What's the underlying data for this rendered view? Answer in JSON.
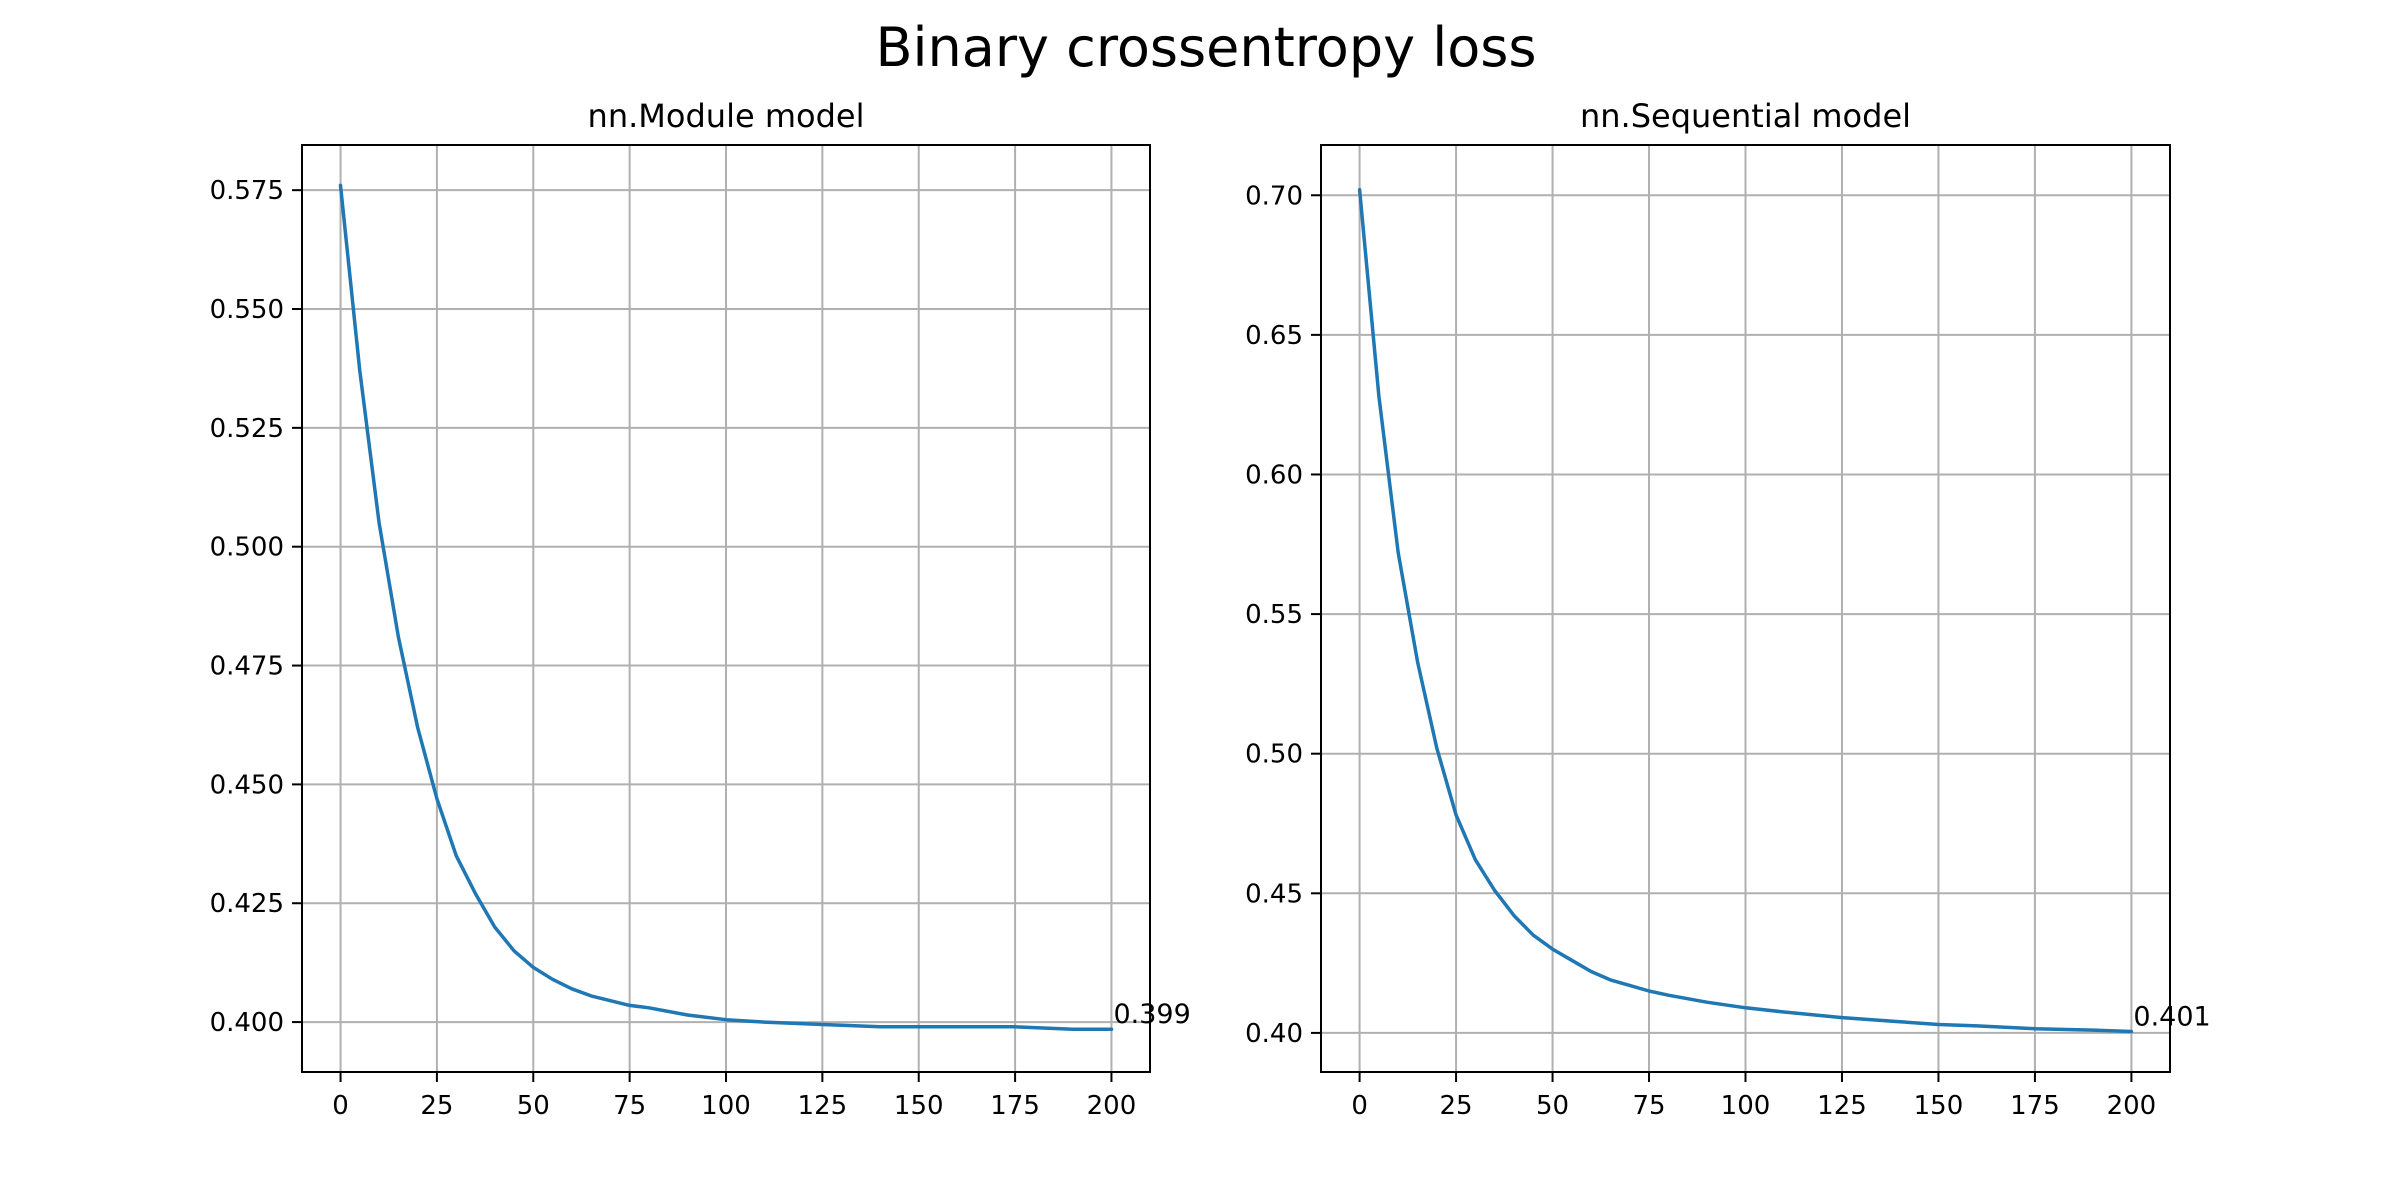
{
  "figure": {
    "title": "Binary crossentropy loss"
  },
  "colors": {
    "series": "#1f77b4",
    "grid": "#b0b0b0",
    "axes": "#000000"
  },
  "chart_data": [
    {
      "type": "line",
      "title": "nn.Module model",
      "xlabel": "",
      "ylabel": "",
      "xlim": [
        -10,
        210
      ],
      "ylim": [
        0.3895,
        0.5845
      ],
      "xticks": [
        0,
        25,
        50,
        75,
        100,
        125,
        150,
        175,
        200
      ],
      "xtick_labels": [
        "0",
        "25",
        "50",
        "75",
        "100",
        "125",
        "150",
        "175",
        "200"
      ],
      "yticks": [
        0.4,
        0.425,
        0.45,
        0.475,
        0.5,
        0.525,
        0.55,
        0.575
      ],
      "ytick_labels": [
        "0.400",
        "0.425",
        "0.450",
        "0.475",
        "0.500",
        "0.525",
        "0.550",
        "0.575"
      ],
      "grid": true,
      "end_annotation": "0.399",
      "series": [
        {
          "x": [
            0,
            5,
            10,
            15,
            20,
            25,
            30,
            35,
            40,
            45,
            50,
            55,
            60,
            65,
            70,
            75,
            80,
            90,
            100,
            110,
            125,
            140,
            150,
            160,
            175,
            190,
            200
          ],
          "y": [
            0.576,
            0.537,
            0.505,
            0.481,
            0.462,
            0.447,
            0.435,
            0.427,
            0.42,
            0.415,
            0.4115,
            0.409,
            0.407,
            0.4055,
            0.4045,
            0.4035,
            0.403,
            0.4015,
            0.4005,
            0.4,
            0.3995,
            0.399,
            0.399,
            0.399,
            0.399,
            0.3985,
            0.3985
          ]
        }
      ]
    },
    {
      "type": "line",
      "title": "nn.Sequential model",
      "xlabel": "",
      "ylabel": "",
      "xlim": [
        -10,
        210
      ],
      "ylim": [
        0.386,
        0.718
      ],
      "xticks": [
        0,
        25,
        50,
        75,
        100,
        125,
        150,
        175,
        200
      ],
      "xtick_labels": [
        "0",
        "25",
        "50",
        "75",
        "100",
        "125",
        "150",
        "175",
        "200"
      ],
      "yticks": [
        0.4,
        0.45,
        0.5,
        0.55,
        0.6,
        0.65,
        0.7
      ],
      "ytick_labels": [
        "0.40",
        "0.45",
        "0.50",
        "0.55",
        "0.60",
        "0.65",
        "0.70"
      ],
      "grid": true,
      "end_annotation": "0.401",
      "series": [
        {
          "x": [
            0,
            5,
            10,
            15,
            20,
            25,
            30,
            35,
            40,
            45,
            50,
            55,
            60,
            65,
            70,
            75,
            80,
            90,
            100,
            110,
            125,
            140,
            150,
            160,
            175,
            190,
            200
          ],
          "y": [
            0.702,
            0.628,
            0.572,
            0.533,
            0.502,
            0.478,
            0.462,
            0.451,
            0.442,
            0.435,
            0.43,
            0.426,
            0.422,
            0.419,
            0.417,
            0.415,
            0.4135,
            0.411,
            0.409,
            0.4075,
            0.4055,
            0.404,
            0.403,
            0.4025,
            0.4015,
            0.401,
            0.4005
          ]
        }
      ]
    }
  ]
}
